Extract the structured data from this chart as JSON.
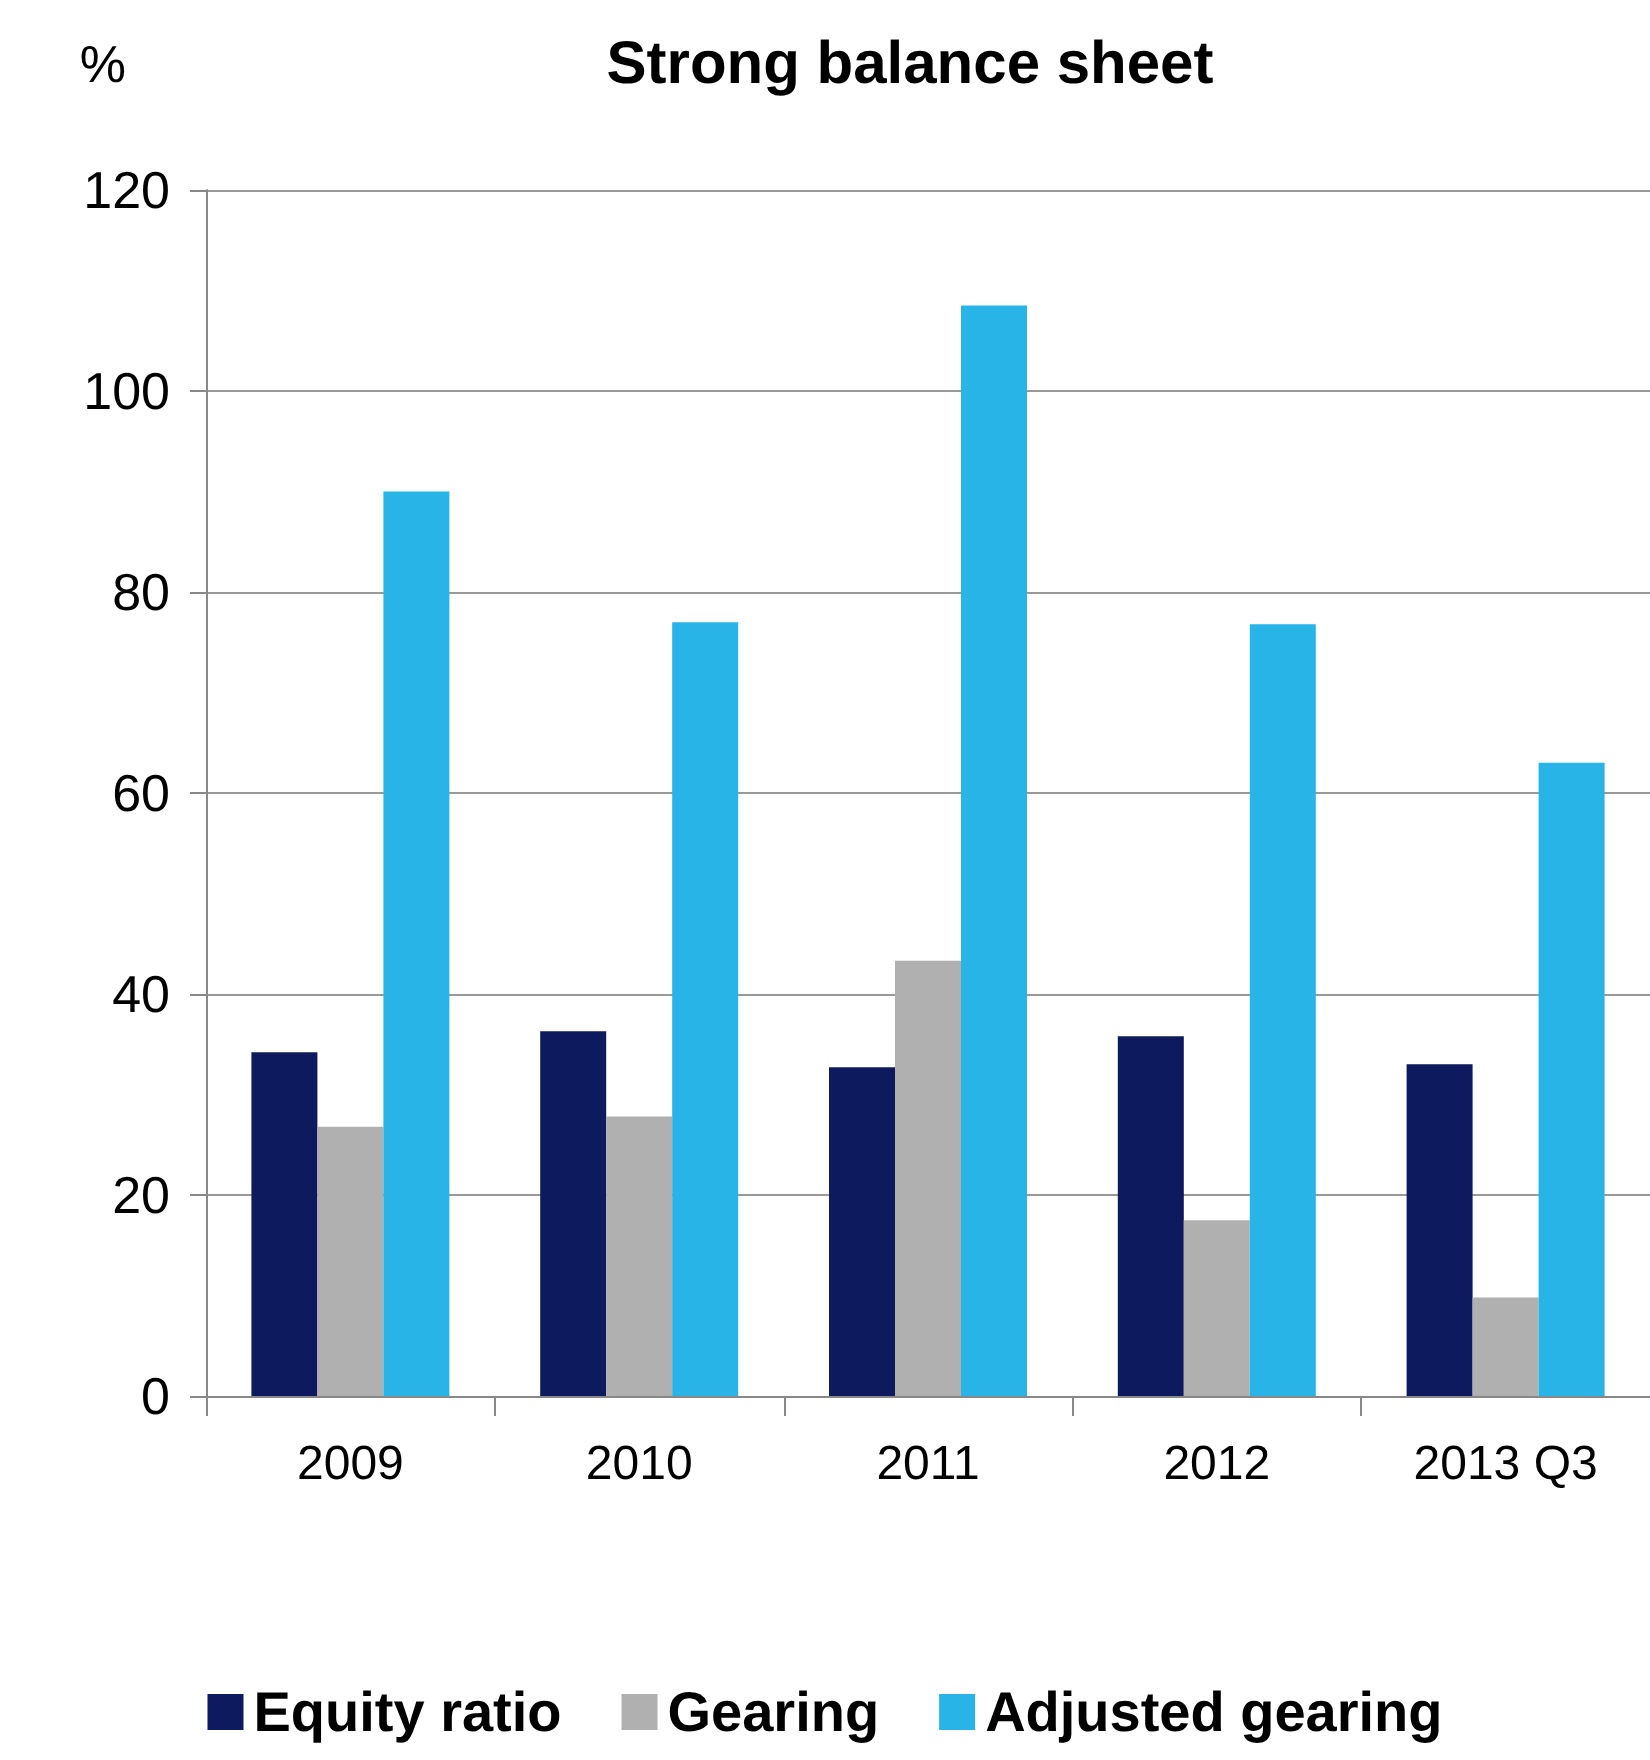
{
  "chart_data": {
    "type": "bar",
    "title": "Strong balance sheet",
    "ylabel": "%",
    "categories": [
      "2009",
      "2010",
      "2011",
      "2012",
      "2013 Q3"
    ],
    "series": [
      {
        "name": "Equity ratio",
        "color": "#0e1a5e",
        "values": [
          34.2,
          36.3,
          32.7,
          35.8,
          33
        ]
      },
      {
        "name": "Gearing",
        "color": "#b0b0b0",
        "values": [
          26.8,
          27.8,
          43.3,
          17.5,
          9.8
        ]
      },
      {
        "name": "Adjusted gearing",
        "color": "#29b4e8",
        "values": [
          90,
          77,
          108.5,
          76.8,
          63
        ]
      }
    ],
    "ylim": [
      0,
      120
    ],
    "yticks": [
      0,
      20,
      40,
      60,
      80,
      100,
      120
    ],
    "grid": "y",
    "legend": "bottom"
  }
}
